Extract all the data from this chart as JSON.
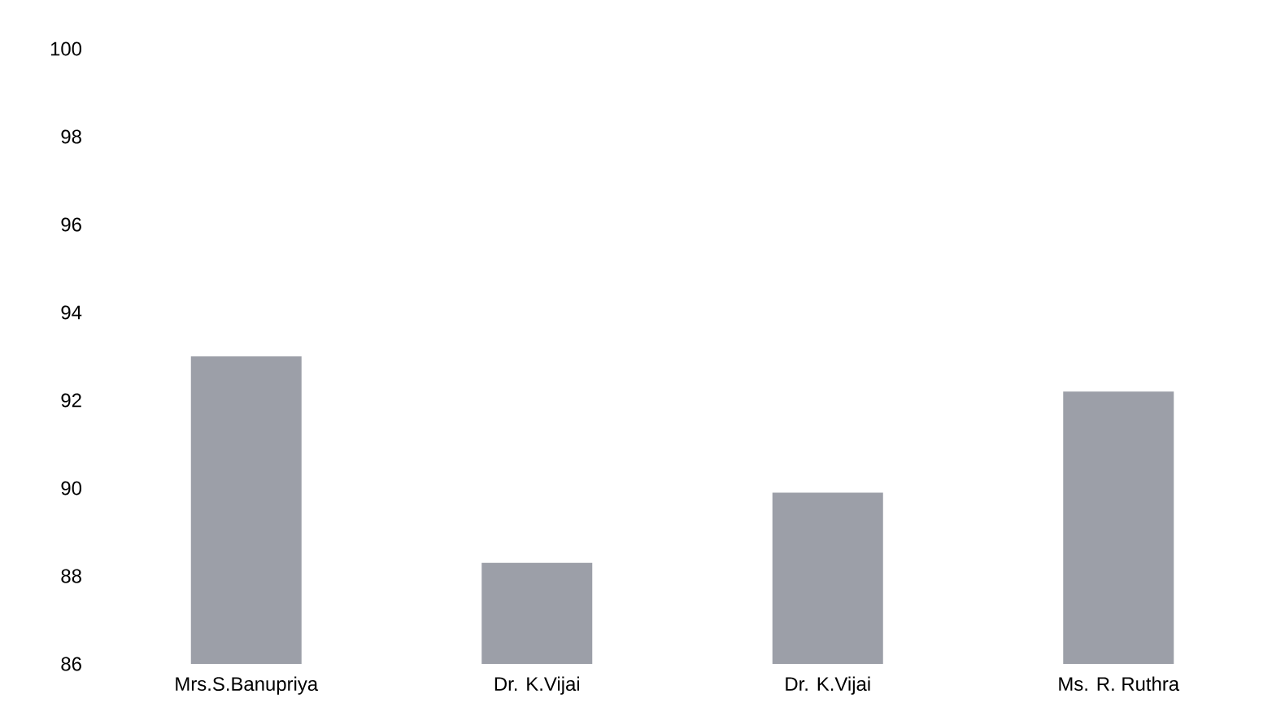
{
  "chart_data": {
    "type": "bar",
    "categories": [
      "Mrs.S.Banupriya",
      "Dr. K.Vijai",
      "Dr. K.Vijai",
      "Ms. R. Ruthra"
    ],
    "values": [
      93.0,
      88.3,
      89.9,
      92.2
    ],
    "color": "#9c9fa8",
    "ylim": [
      86,
      100
    ],
    "yticks": [
      86,
      88,
      90,
      92,
      94,
      96,
      98,
      100
    ]
  }
}
